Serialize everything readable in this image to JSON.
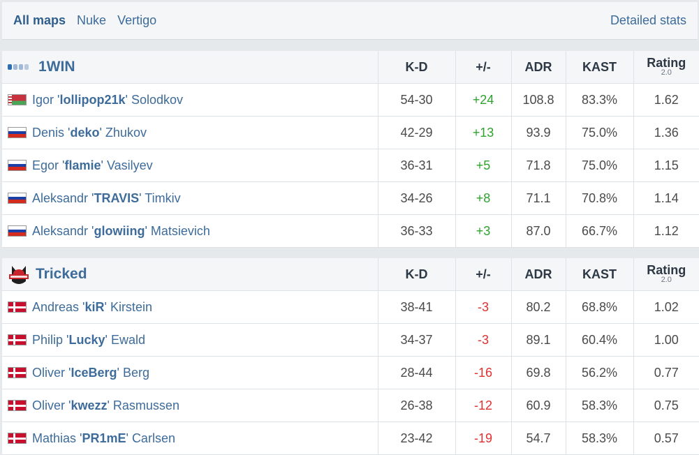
{
  "tabs": [
    {
      "label": "All maps",
      "active": true
    },
    {
      "label": "Nuke",
      "active": false
    },
    {
      "label": "Vertigo",
      "active": false
    }
  ],
  "detailed_stats_label": "Detailed stats",
  "headers": {
    "kd": "K-D",
    "pm": "+/-",
    "adr": "ADR",
    "kast": "KAST",
    "rating": "Rating",
    "rating_sub": "2.0"
  },
  "teams": [
    {
      "name": "1WIN",
      "logo": "1win-logo",
      "players": [
        {
          "first": "Igor",
          "nick": "lollipop21k",
          "last": "Solodkov",
          "flag": "belarus-flag",
          "kd": "54-30",
          "pm": "+24",
          "adr": "108.8",
          "kast": "83.3%",
          "rating": "1.62"
        },
        {
          "first": "Denis",
          "nick": "deko",
          "last": "Zhukov",
          "flag": "russia-flag",
          "kd": "42-29",
          "pm": "+13",
          "adr": "93.9",
          "kast": "75.0%",
          "rating": "1.36"
        },
        {
          "first": "Egor",
          "nick": "flamie",
          "last": "Vasilyev",
          "flag": "russia-flag",
          "kd": "36-31",
          "pm": "+5",
          "adr": "71.8",
          "kast": "75.0%",
          "rating": "1.15"
        },
        {
          "first": "Aleksandr",
          "nick": "TRAVIS",
          "last": "Timkiv",
          "flag": "russia-flag",
          "kd": "34-26",
          "pm": "+8",
          "adr": "71.1",
          "kast": "70.8%",
          "rating": "1.14"
        },
        {
          "first": "Aleksandr",
          "nick": "glowiing",
          "last": "Matsievich",
          "flag": "russia-flag",
          "kd": "36-33",
          "pm": "+3",
          "adr": "87.0",
          "kast": "66.7%",
          "rating": "1.12"
        }
      ]
    },
    {
      "name": "Tricked",
      "logo": "tricked-logo",
      "players": [
        {
          "first": "Andreas",
          "nick": "kiR",
          "last": "Kirstein",
          "flag": "denmark-flag",
          "kd": "38-41",
          "pm": "-3",
          "adr": "80.2",
          "kast": "68.8%",
          "rating": "1.02"
        },
        {
          "first": "Philip",
          "nick": "Lucky",
          "last": "Ewald",
          "flag": "denmark-flag",
          "kd": "34-37",
          "pm": "-3",
          "adr": "89.1",
          "kast": "60.4%",
          "rating": "1.00"
        },
        {
          "first": "Oliver",
          "nick": "IceBerg",
          "last": "Berg",
          "flag": "denmark-flag",
          "kd": "28-44",
          "pm": "-16",
          "adr": "69.8",
          "kast": "56.2%",
          "rating": "0.77"
        },
        {
          "first": "Oliver",
          "nick": "kwezz",
          "last": "Rasmussen",
          "flag": "denmark-flag",
          "kd": "26-38",
          "pm": "-12",
          "adr": "60.9",
          "kast": "58.3%",
          "rating": "0.75"
        },
        {
          "first": "Mathias",
          "nick": "PR1mE",
          "last": "Carlsen",
          "flag": "denmark-flag",
          "kd": "23-42",
          "pm": "-19",
          "adr": "54.7",
          "kast": "58.3%",
          "rating": "0.57"
        }
      ]
    }
  ],
  "colors": {
    "link": "#3d6b9a",
    "positive": "#2da32d",
    "negative": "#e03131",
    "header_bg": "#f4f6f8"
  }
}
